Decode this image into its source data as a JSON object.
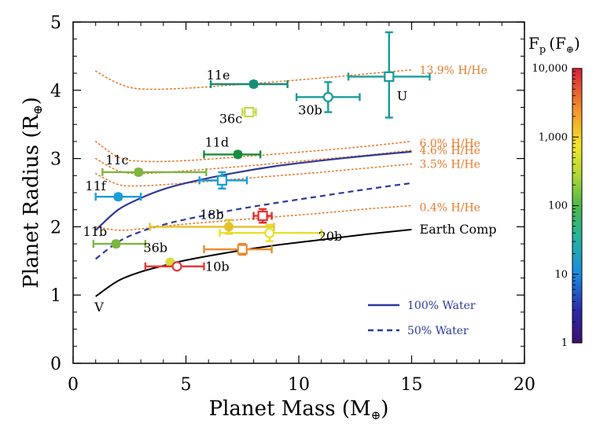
{
  "chart_data": {
    "type": "scatter",
    "xlabel": "Planet Mass (M",
    "xlabel_sub": "⊕",
    "xlabel_close": ")",
    "ylabel": "Planet Radius (R",
    "ylabel_sub": "⊕",
    "ylabel_close": ")",
    "xlim": [
      0,
      20
    ],
    "ylim": [
      0,
      5
    ],
    "x_ticks": [
      0,
      5,
      10,
      15,
      20
    ],
    "y_ticks": [
      0,
      1,
      2,
      3,
      4,
      5
    ],
    "x_tick_labels": [
      "0",
      "5",
      "10",
      "15",
      "20"
    ],
    "y_tick_labels": [
      "0",
      "1",
      "2",
      "3",
      "4",
      "5"
    ],
    "grid": false,
    "colorbar": {
      "title_main": "F",
      "title_sub": "p",
      "title_unit": "(F",
      "title_unit_sub": "⊕",
      "title_close": ")",
      "scale": "log",
      "range": [
        1,
        10000
      ],
      "tick_values": [
        1,
        10,
        100,
        1000,
        10000
      ],
      "tick_labels": [
        "1",
        "10",
        "100",
        "1,000",
        "10,000"
      ]
    },
    "points": [
      {
        "label": "11e",
        "x": 8.0,
        "y": 4.09,
        "xerr": [
          1.9,
          1.5
        ],
        "yerr": [
          0.04,
          0.04
        ],
        "color": "#178c74",
        "marker": "circle-filled"
      },
      {
        "label": "36c",
        "x": 7.8,
        "y": 3.68,
        "xerr": [
          0.3,
          0.3
        ],
        "yerr": [
          0.04,
          0.04
        ],
        "color": "#c7d84a",
        "marker": "square-open"
      },
      {
        "label": "30b",
        "x": 11.3,
        "y": 3.9,
        "xerr": [
          1.4,
          1.4
        ],
        "yerr": [
          0.22,
          0.22
        ],
        "color": "#179c9a",
        "marker": "circle-open"
      },
      {
        "label": "U",
        "x": 14.0,
        "y": 4.2,
        "xerr": [
          1.8,
          1.8
        ],
        "yerr": [
          0.6,
          0.65
        ],
        "color": "#179c9a",
        "marker": "square-open"
      },
      {
        "label": "11d",
        "x": 7.3,
        "y": 3.06,
        "xerr": [
          1.5,
          1.0
        ],
        "yerr": [
          0.04,
          0.04
        ],
        "color": "#178c3c",
        "marker": "circle-filled"
      },
      {
        "label": "11c",
        "x": 2.9,
        "y": 2.8,
        "xerr": [
          1.6,
          3.0
        ],
        "yerr": [
          0.04,
          0.04
        ],
        "color": "#7db540",
        "marker": "circle-filled"
      },
      {
        "label": "",
        "x": 6.6,
        "y": 2.68,
        "xerr": [
          1.0,
          1.1
        ],
        "yerr": [
          0.12,
          0.12
        ],
        "color": "#1a9ed9",
        "marker": "square-open"
      },
      {
        "label": "11f",
        "x": 2.0,
        "y": 2.44,
        "xerr": [
          1.0,
          1.0
        ],
        "yerr": [
          0.04,
          0.04
        ],
        "color": "#1a9ed9",
        "marker": "circle-filled"
      },
      {
        "label": "18b",
        "x": 8.4,
        "y": 2.16,
        "xerr": [
          0.4,
          0.4
        ],
        "yerr": [
          0.1,
          0.1
        ],
        "color": "#e52e2e",
        "marker": "square-open"
      },
      {
        "label": "",
        "x": 6.9,
        "y": 2.0,
        "xerr": [
          3.5,
          2.0
        ],
        "yerr": [
          0.1,
          0.1
        ],
        "color": "#e6c128",
        "marker": "circle-filled"
      },
      {
        "label": "20b",
        "x": 8.7,
        "y": 1.91,
        "xerr": [
          2.2,
          2.3
        ],
        "yerr": [
          0.12,
          0.12
        ],
        "color": "#e8e028",
        "marker": "circle-open"
      },
      {
        "label": "11b",
        "x": 1.9,
        "y": 1.75,
        "xerr": [
          1.0,
          1.3
        ],
        "yerr": [
          0.04,
          0.04
        ],
        "color": "#7db540",
        "marker": "circle-filled"
      },
      {
        "label": "",
        "x": 7.5,
        "y": 1.67,
        "xerr": [
          1.7,
          1.3
        ],
        "yerr": [
          0.08,
          0.08
        ],
        "color": "#e68a2e",
        "marker": "square-open"
      },
      {
        "label": "36b",
        "x": 4.3,
        "y": 1.48,
        "xerr": [
          0.1,
          0.1
        ],
        "yerr": [
          0.02,
          0.02
        ],
        "color": "#d6dd3c",
        "marker": "circle-filled"
      },
      {
        "label": "10b",
        "x": 4.6,
        "y": 1.42,
        "xerr": [
          1.4,
          1.2
        ],
        "yerr": [
          0.03,
          0.03
        ],
        "color": "#e53a3a",
        "marker": "circle-open"
      }
    ],
    "curves": {
      "hhe_label_color": "#e87a2a",
      "water_color": "#2e3a9a",
      "earth_color": "#000000",
      "hhe": [
        {
          "label": "13.9% H/He",
          "x": [
            1,
            2,
            3,
            5,
            8,
            11,
            13,
            15
          ],
          "y": [
            4.28,
            4.1,
            4.02,
            4.03,
            4.1,
            4.18,
            4.24,
            4.3
          ]
        },
        {
          "label": "6.0% H/He",
          "x": [
            1,
            2,
            3,
            5,
            8,
            11,
            13,
            15
          ],
          "y": [
            3.25,
            3.02,
            2.96,
            2.97,
            3.04,
            3.12,
            3.18,
            3.25
          ]
        },
        {
          "label": "4.6% H/He",
          "x": [
            1,
            2,
            3,
            5,
            8,
            11,
            13,
            15
          ],
          "y": [
            3.0,
            2.82,
            2.78,
            2.82,
            2.9,
            2.99,
            3.05,
            3.12
          ]
        },
        {
          "label": "3.5% H/He",
          "x": [
            1,
            2,
            3,
            5,
            8,
            11,
            13,
            15
          ],
          "y": [
            2.78,
            2.62,
            2.6,
            2.64,
            2.72,
            2.8,
            2.86,
            2.92
          ]
        },
        {
          "label": "0.4% H/He",
          "x": [
            1,
            2,
            3,
            5,
            8,
            11,
            13,
            15
          ],
          "y": [
            2.0,
            1.95,
            1.97,
            2.04,
            2.12,
            2.2,
            2.26,
            2.31
          ]
        }
      ],
      "water100": {
        "label": "100% Water",
        "x": [
          1,
          2,
          3,
          4,
          5,
          7,
          9,
          11,
          13,
          15
        ],
        "y": [
          1.95,
          2.25,
          2.42,
          2.55,
          2.64,
          2.78,
          2.89,
          2.97,
          3.04,
          3.1
        ]
      },
      "water50": {
        "label": "50% Water",
        "x": [
          1,
          2,
          3,
          4,
          5,
          7,
          9,
          11,
          13,
          15
        ],
        "y": [
          1.53,
          1.78,
          1.93,
          2.03,
          2.11,
          2.24,
          2.35,
          2.45,
          2.55,
          2.64
        ]
      },
      "earth": {
        "label": "Earth Comp",
        "x": [
          1,
          2,
          3,
          4,
          5,
          7,
          9,
          11,
          13,
          15
        ],
        "y": [
          0.98,
          1.21,
          1.34,
          1.43,
          1.51,
          1.63,
          1.73,
          1.81,
          1.89,
          1.96
        ]
      }
    },
    "annotations": [
      {
        "text": "V",
        "x": 0.95,
        "y": 0.82
      },
      {
        "text": "Earth Comp",
        "x": 15.35,
        "y": 1.96
      }
    ],
    "legend": {
      "position": "bottom-right",
      "items": [
        {
          "label": "100% Water",
          "style": "solid",
          "color": "#2e3a9a"
        },
        {
          "label": "50% Water",
          "style": "dashed",
          "color": "#2e3a9a"
        }
      ]
    }
  }
}
